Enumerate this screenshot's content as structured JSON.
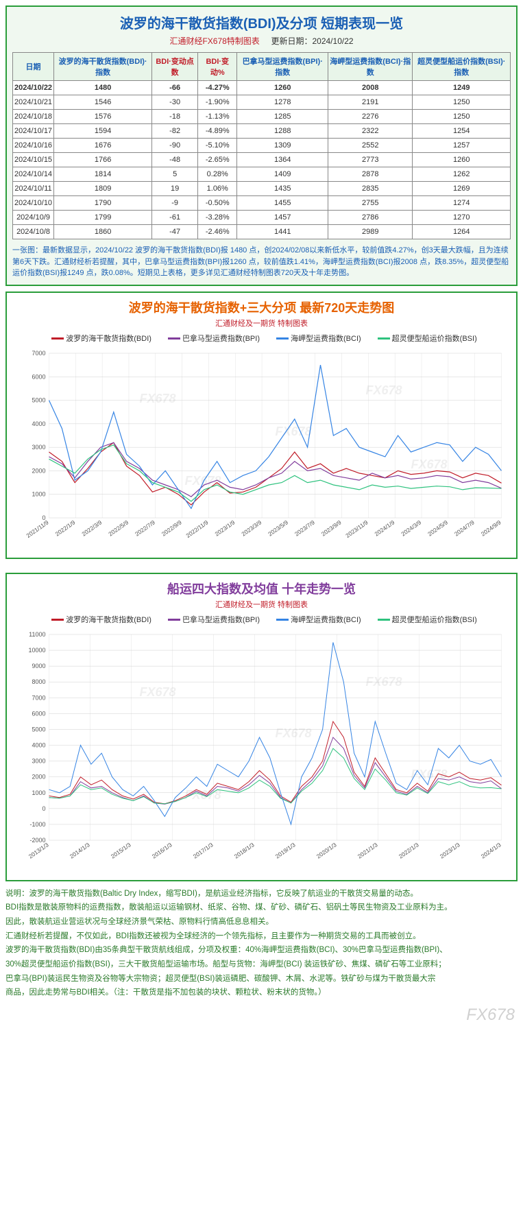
{
  "table_panel": {
    "title": "波罗的海干散货指数(BDI)及分项  短期表现一览",
    "subtitle_prefix": "汇通财经FX678特制图表",
    "subtitle_date_label": "更新日期：",
    "subtitle_date": "2024/10/22",
    "headers": [
      {
        "label": "日期",
        "red": false
      },
      {
        "label": "波罗的海干散货指数(BDI)·指数",
        "red": false
      },
      {
        "label": "BDI·变动点数",
        "red": true
      },
      {
        "label": "BDI·变动%",
        "red": true
      },
      {
        "label": "巴拿马型运费指数(BPI)·指数",
        "red": false
      },
      {
        "label": "海岬型运费指数(BCI)·指数",
        "red": false
      },
      {
        "label": "超灵便型船运价指数(BSI)·指数",
        "red": false
      }
    ],
    "rows": [
      {
        "highlight": true,
        "cells": [
          "2024/10/22",
          "1480",
          "-66",
          "-4.27%",
          "1260",
          "2008",
          "1249"
        ]
      },
      {
        "highlight": false,
        "cells": [
          "2024/10/21",
          "1546",
          "-30",
          "-1.90%",
          "1278",
          "2191",
          "1250"
        ]
      },
      {
        "highlight": false,
        "cells": [
          "2024/10/18",
          "1576",
          "-18",
          "-1.13%",
          "1285",
          "2276",
          "1250"
        ]
      },
      {
        "highlight": false,
        "cells": [
          "2024/10/17",
          "1594",
          "-82",
          "-4.89%",
          "1288",
          "2322",
          "1254"
        ]
      },
      {
        "highlight": false,
        "cells": [
          "2024/10/16",
          "1676",
          "-90",
          "-5.10%",
          "1309",
          "2552",
          "1257"
        ]
      },
      {
        "highlight": false,
        "cells": [
          "2024/10/15",
          "1766",
          "-48",
          "-2.65%",
          "1364",
          "2773",
          "1260"
        ]
      },
      {
        "highlight": false,
        "cells": [
          "2024/10/14",
          "1814",
          "5",
          "0.28%",
          "1409",
          "2878",
          "1262"
        ]
      },
      {
        "highlight": false,
        "cells": [
          "2024/10/11",
          "1809",
          "19",
          "1.06%",
          "1435",
          "2835",
          "1269"
        ]
      },
      {
        "highlight": false,
        "cells": [
          "2024/10/10",
          "1790",
          "-9",
          "-0.50%",
          "1455",
          "2755",
          "1274"
        ]
      },
      {
        "highlight": false,
        "cells": [
          "2024/10/9",
          "1799",
          "-61",
          "-3.28%",
          "1457",
          "2786",
          "1270"
        ]
      },
      {
        "highlight": false,
        "cells": [
          "2024/10/8",
          "1860",
          "-47",
          "-2.46%",
          "1441",
          "2989",
          "1264"
        ]
      }
    ],
    "footnote": "一张图：最新数据显示，2024/10/22 波罗的海干散货指数(BDI)报 1480 点，创2024/02/08以来新低水平，较前值跌4.27%，创3天最大跌幅，且为连续第6天下跌。汇通财经析若提醒，其中，巴拿马型运费指数(BPI)报1260 点，较前值跌1.41%，海岬型运费指数(BCI)报2008 点，跌8.35%，超灵便型船运价指数(BSI)报1249 点，跌0.08%。短期见上表格，更多详见汇通财经特制图表720天及十年走势图。"
  },
  "chart720": {
    "title": "波罗的海干散货指数+三大分项  最新720天走势图",
    "subtitle": "汇通财经及一期货  特制图表",
    "watermark": "FX678",
    "legend": [
      {
        "label": "波罗的海干散货指数(BDI)",
        "color": "#c01c28"
      },
      {
        "label": "巴拿马型运费指数(BPI)",
        "color": "#813d9c"
      },
      {
        "label": "海岬型运费指数(BCI)",
        "color": "#3584e4"
      },
      {
        "label": "超灵便型船运价指数(BSI)",
        "color": "#2ec27e"
      }
    ],
    "ylim": [
      0,
      7000
    ],
    "ytick_step": 1000,
    "x_labels": [
      "2021/11/9",
      "2022/1/9",
      "2022/3/9",
      "2022/5/9",
      "2022/7/9",
      "2022/9/9",
      "2022/11/9",
      "2023/1/9",
      "2023/3/9",
      "2023/5/9",
      "2023/7/9",
      "2023/9/9",
      "2023/11/9",
      "2024/1/9",
      "2024/3/9",
      "2024/5/9",
      "2024/7/9",
      "2024/9/9"
    ],
    "grid_color": "#d0d0d0",
    "background_color": "#ffffff",
    "line_width": 1.2,
    "series": {
      "BDI": [
        2800,
        2400,
        1500,
        2100,
        2800,
        3200,
        2200,
        1800,
        1100,
        1300,
        1000,
        550,
        1100,
        1500,
        1050,
        1100,
        1300,
        1700,
        2100,
        2800,
        2100,
        2300,
        1900,
        2100,
        1900,
        1800,
        1700,
        2000,
        1850,
        1900,
        2000,
        1950,
        1700,
        1900,
        1800,
        1480
      ],
      "BPI": [
        2600,
        2300,
        1700,
        2400,
        3000,
        3200,
        2400,
        2100,
        1600,
        1400,
        1200,
        900,
        1400,
        1600,
        1300,
        1200,
        1400,
        1700,
        1900,
        2400,
        2000,
        2100,
        1800,
        1700,
        1600,
        1900,
        1700,
        1800,
        1650,
        1700,
        1800,
        1750,
        1500,
        1600,
        1500,
        1260
      ],
      "BCI": [
        5000,
        3800,
        1600,
        2000,
        2800,
        4500,
        2700,
        2200,
        1400,
        2000,
        1200,
        400,
        1600,
        2400,
        1500,
        1800,
        2000,
        2600,
        3400,
        4200,
        3000,
        6500,
        3500,
        3800,
        3000,
        2800,
        2600,
        3500,
        2800,
        3000,
        3200,
        3100,
        2400,
        3000,
        2700,
        2008
      ],
      "BSI": [
        2500,
        2200,
        1900,
        2500,
        2900,
        3100,
        2300,
        2000,
        1500,
        1300,
        1100,
        700,
        1200,
        1400,
        1100,
        1000,
        1200,
        1400,
        1500,
        1800,
        1500,
        1600,
        1400,
        1300,
        1200,
        1400,
        1300,
        1350,
        1250,
        1300,
        1350,
        1320,
        1200,
        1280,
        1270,
        1249
      ]
    }
  },
  "chart10y": {
    "title": "船运四大指数及均值 十年走势一览",
    "subtitle": "汇通财经及一期货 特制图表",
    "watermark": "FX678",
    "legend": [
      {
        "label": "波罗的海干散货指数(BDI)",
        "color": "#c01c28"
      },
      {
        "label": "巴拿马型运费指数(BPI)",
        "color": "#813d9c"
      },
      {
        "label": "海岬型运费指数(BCI)",
        "color": "#3584e4"
      },
      {
        "label": "超灵便型船运价指数(BSI)",
        "color": "#2ec27e"
      }
    ],
    "ylim": [
      -2000,
      11000
    ],
    "ytick_step": 1000,
    "x_labels": [
      "2013/1/3",
      "2014/1/3",
      "2015/1/3",
      "2016/1/3",
      "2017/1/3",
      "2018/1/3",
      "2019/1/3",
      "2020/1/3",
      "2021/1/3",
      "2022/1/3",
      "2023/1/3",
      "2024/1/3"
    ],
    "grid_color": "#d0d0d0",
    "background_color": "#ffffff",
    "line_width": 1.0,
    "series": {
      "BDI": [
        800,
        700,
        900,
        2000,
        1500,
        1800,
        1200,
        800,
        600,
        900,
        400,
        300,
        500,
        800,
        1200,
        900,
        1600,
        1400,
        1200,
        1700,
        2400,
        1800,
        800,
        400,
        1400,
        2000,
        3000,
        5500,
        4500,
        2300,
        1400,
        3200,
        2200,
        1200,
        1000,
        1600,
        1100,
        2200,
        2000,
        2300,
        1900,
        1800,
        1950,
        1480
      ],
      "BPI": [
        700,
        650,
        800,
        1700,
        1300,
        1400,
        1000,
        700,
        500,
        800,
        350,
        280,
        450,
        700,
        1100,
        800,
        1400,
        1300,
        1100,
        1500,
        2100,
        1600,
        700,
        350,
        1200,
        1800,
        2700,
        4500,
        3800,
        2100,
        1300,
        2900,
        2000,
        1100,
        900,
        1400,
        1000,
        1900,
        1800,
        2000,
        1700,
        1600,
        1750,
        1260
      ],
      "BCI": [
        1200,
        1000,
        1400,
        4000,
        2800,
        3500,
        2000,
        1200,
        800,
        1400,
        500,
        -500,
        700,
        1300,
        2000,
        1400,
        2800,
        2400,
        2000,
        3000,
        4500,
        3200,
        1000,
        -1000,
        2000,
        3200,
        5000,
        10500,
        8000,
        3500,
        2000,
        5500,
        3500,
        1600,
        1200,
        2400,
        1500,
        3800,
        3200,
        4000,
        3000,
        2800,
        3100,
        2008
      ],
      "BSI": [
        700,
        650,
        800,
        1500,
        1200,
        1300,
        900,
        650,
        500,
        750,
        350,
        300,
        450,
        700,
        1000,
        750,
        1200,
        1100,
        1000,
        1300,
        1800,
        1400,
        650,
        350,
        1100,
        1600,
        2400,
        3800,
        3200,
        1900,
        1200,
        2500,
        1800,
        1000,
        850,
        1300,
        950,
        1700,
        1500,
        1700,
        1400,
        1300,
        1320,
        1249
      ]
    }
  },
  "description": {
    "lines": [
      "说明：波罗的海干散货指数(Baltic Dry Index，缩写BDI)，是航运业经济指标，它反映了航运业的干散货交易量的动态。",
      "BDI指数是散装原物料的运费指数，散装船运以运输钢材、纸浆、谷物、煤、矿砂、磷矿石、铝矾土等民生物资及工业原料为主。",
      "因此，散装航运业营运状况与全球经济景气荣枯、原物料行情高低息息相关。",
      "汇通财经析若提醒，不仅如此，BDI指数还被视为全球经济的一个领先指标，且主要作为一种期货交易的工具而被创立。",
      "波罗的海干散货指数(BDI)由35条典型干散货航线组成，分项及权重：40%海岬型运费指数(BCI)、30%巴拿马型运费指数(BPI)、",
      "30%超灵便型船运价指数(BSI)，三大干散货船型运输市场。船型与货物：海岬型(BCI) 装运铁矿砂、焦煤、磷矿石等工业原料；",
      "巴拿马(BPI)装运民生物资及谷物等大宗物资；超灵便型(BSI)装运磷肥、碳酸钾、木屑、水泥等。铁矿砂与煤为干散货最大宗",
      "商品，因此走势常与BDI相关。（注：干散货是指不加包装的块状、颗粒状、粉末状的货物。）"
    ]
  },
  "page_watermark": "FX678"
}
